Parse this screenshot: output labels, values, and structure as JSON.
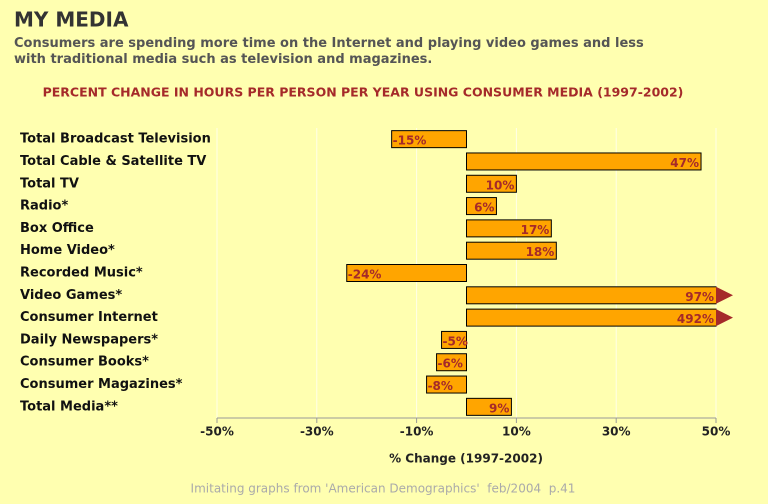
{
  "chart_data": {
    "type": "hbar",
    "title": "MY MEDIA",
    "subtitle": "Consumers are spending more time on the Internet and playing video games and less with traditional media such as television and magazines.",
    "chart_title": "PERCENT CHANGE IN HOURS PER PERSON PER YEAR USING CONSUMER MEDIA (1997-2002)",
    "x_label": "% Change (1997-2002)",
    "footnote": "Imitating graphs from 'American Demographics'  feb/2004  p.41",
    "categories": [
      "Total Broadcast Television",
      "Total Cable & Satellite TV",
      "Total TV",
      "Radio*",
      "Box Office",
      "Home Video*",
      "Recorded Music*",
      "Video Games*",
      "Consumer Internet",
      "Daily Newspapers*",
      "Consumer Books*",
      "Consumer Magazines*",
      "Total Media**"
    ],
    "values": [
      -15,
      47,
      10,
      6,
      17,
      18,
      -24,
      97,
      492,
      -5,
      -6,
      -8,
      9
    ],
    "value_labels": [
      "-15%",
      "47%",
      "10%",
      "6%",
      "17%",
      "18%",
      "-24%",
      "97%",
      "492%",
      "-5%",
      "-6%",
      "-8%",
      "9%"
    ],
    "color": "#ffa500",
    "label_color": "#a52a2a",
    "xlim": [
      -50,
      50
    ],
    "xticks": [
      {
        "value": -50,
        "label": "-50%"
      },
      {
        "value": -30,
        "label": "-30%"
      },
      {
        "value": -10,
        "label": "-10%"
      },
      {
        "value": 10,
        "label": "10%"
      },
      {
        "value": 30,
        "label": "30%"
      },
      {
        "value": 50,
        "label": "50%"
      }
    ],
    "grid": true
  }
}
